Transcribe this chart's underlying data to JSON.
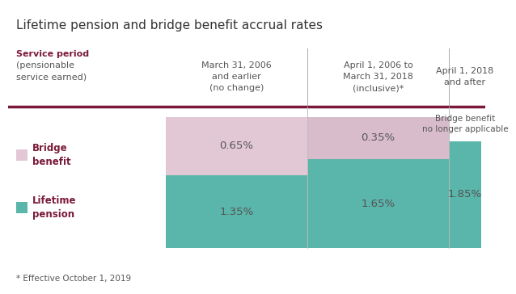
{
  "title": "Lifetime pension and bridge benefit accrual rates",
  "footnote": "* Effective October 1, 2019",
  "header_row_label_bold": "Service period",
  "header_row_label_normal": "(pensionable\nservice earned)",
  "col_headers": [
    "March 31, 2006\nand earlier\n(no change)",
    "April 1, 2006 to\nMarch 31, 2018\n(inclusive)*",
    "April 1, 2018\nand after"
  ],
  "row_labels": [
    {
      "label": "Bridge\nbenefit",
      "color": "#dbb8c8"
    },
    {
      "label": "Lifetime\npension",
      "color": "#5ab5aa"
    }
  ],
  "bridge_values": [
    "0.65%",
    "0.35%"
  ],
  "pension_values": [
    "1.35%",
    "1.65%",
    "1.85%"
  ],
  "bridge_no_longer": "Bridge benefit\nno longer applicable",
  "bridge_color_col0": "#e2c8d5",
  "bridge_color_col1": "#d8bccb",
  "pension_color": "#5ab5aa",
  "divider_color": "#7a1a38",
  "header_label_color": "#7a1a38",
  "text_color": "#555555",
  "bg_color": "#ffffff",
  "title_fontsize": 11,
  "header_fontsize": 8,
  "label_fontsize": 8.5,
  "value_fontsize": 9.5
}
